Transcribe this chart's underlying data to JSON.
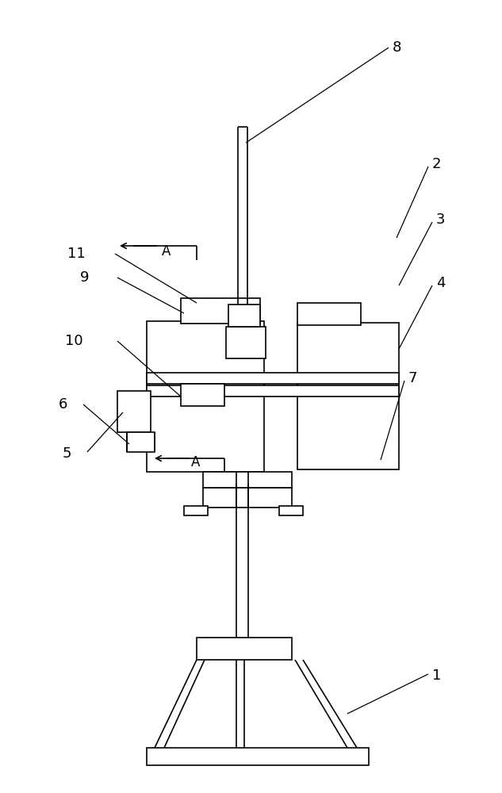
{
  "bg_color": "#ffffff",
  "line_color": "#000000",
  "lw": 1.2,
  "lw_thin": 0.8,
  "fig_width": 6.33,
  "fig_height": 10.0,
  "label_fontsize": 13
}
